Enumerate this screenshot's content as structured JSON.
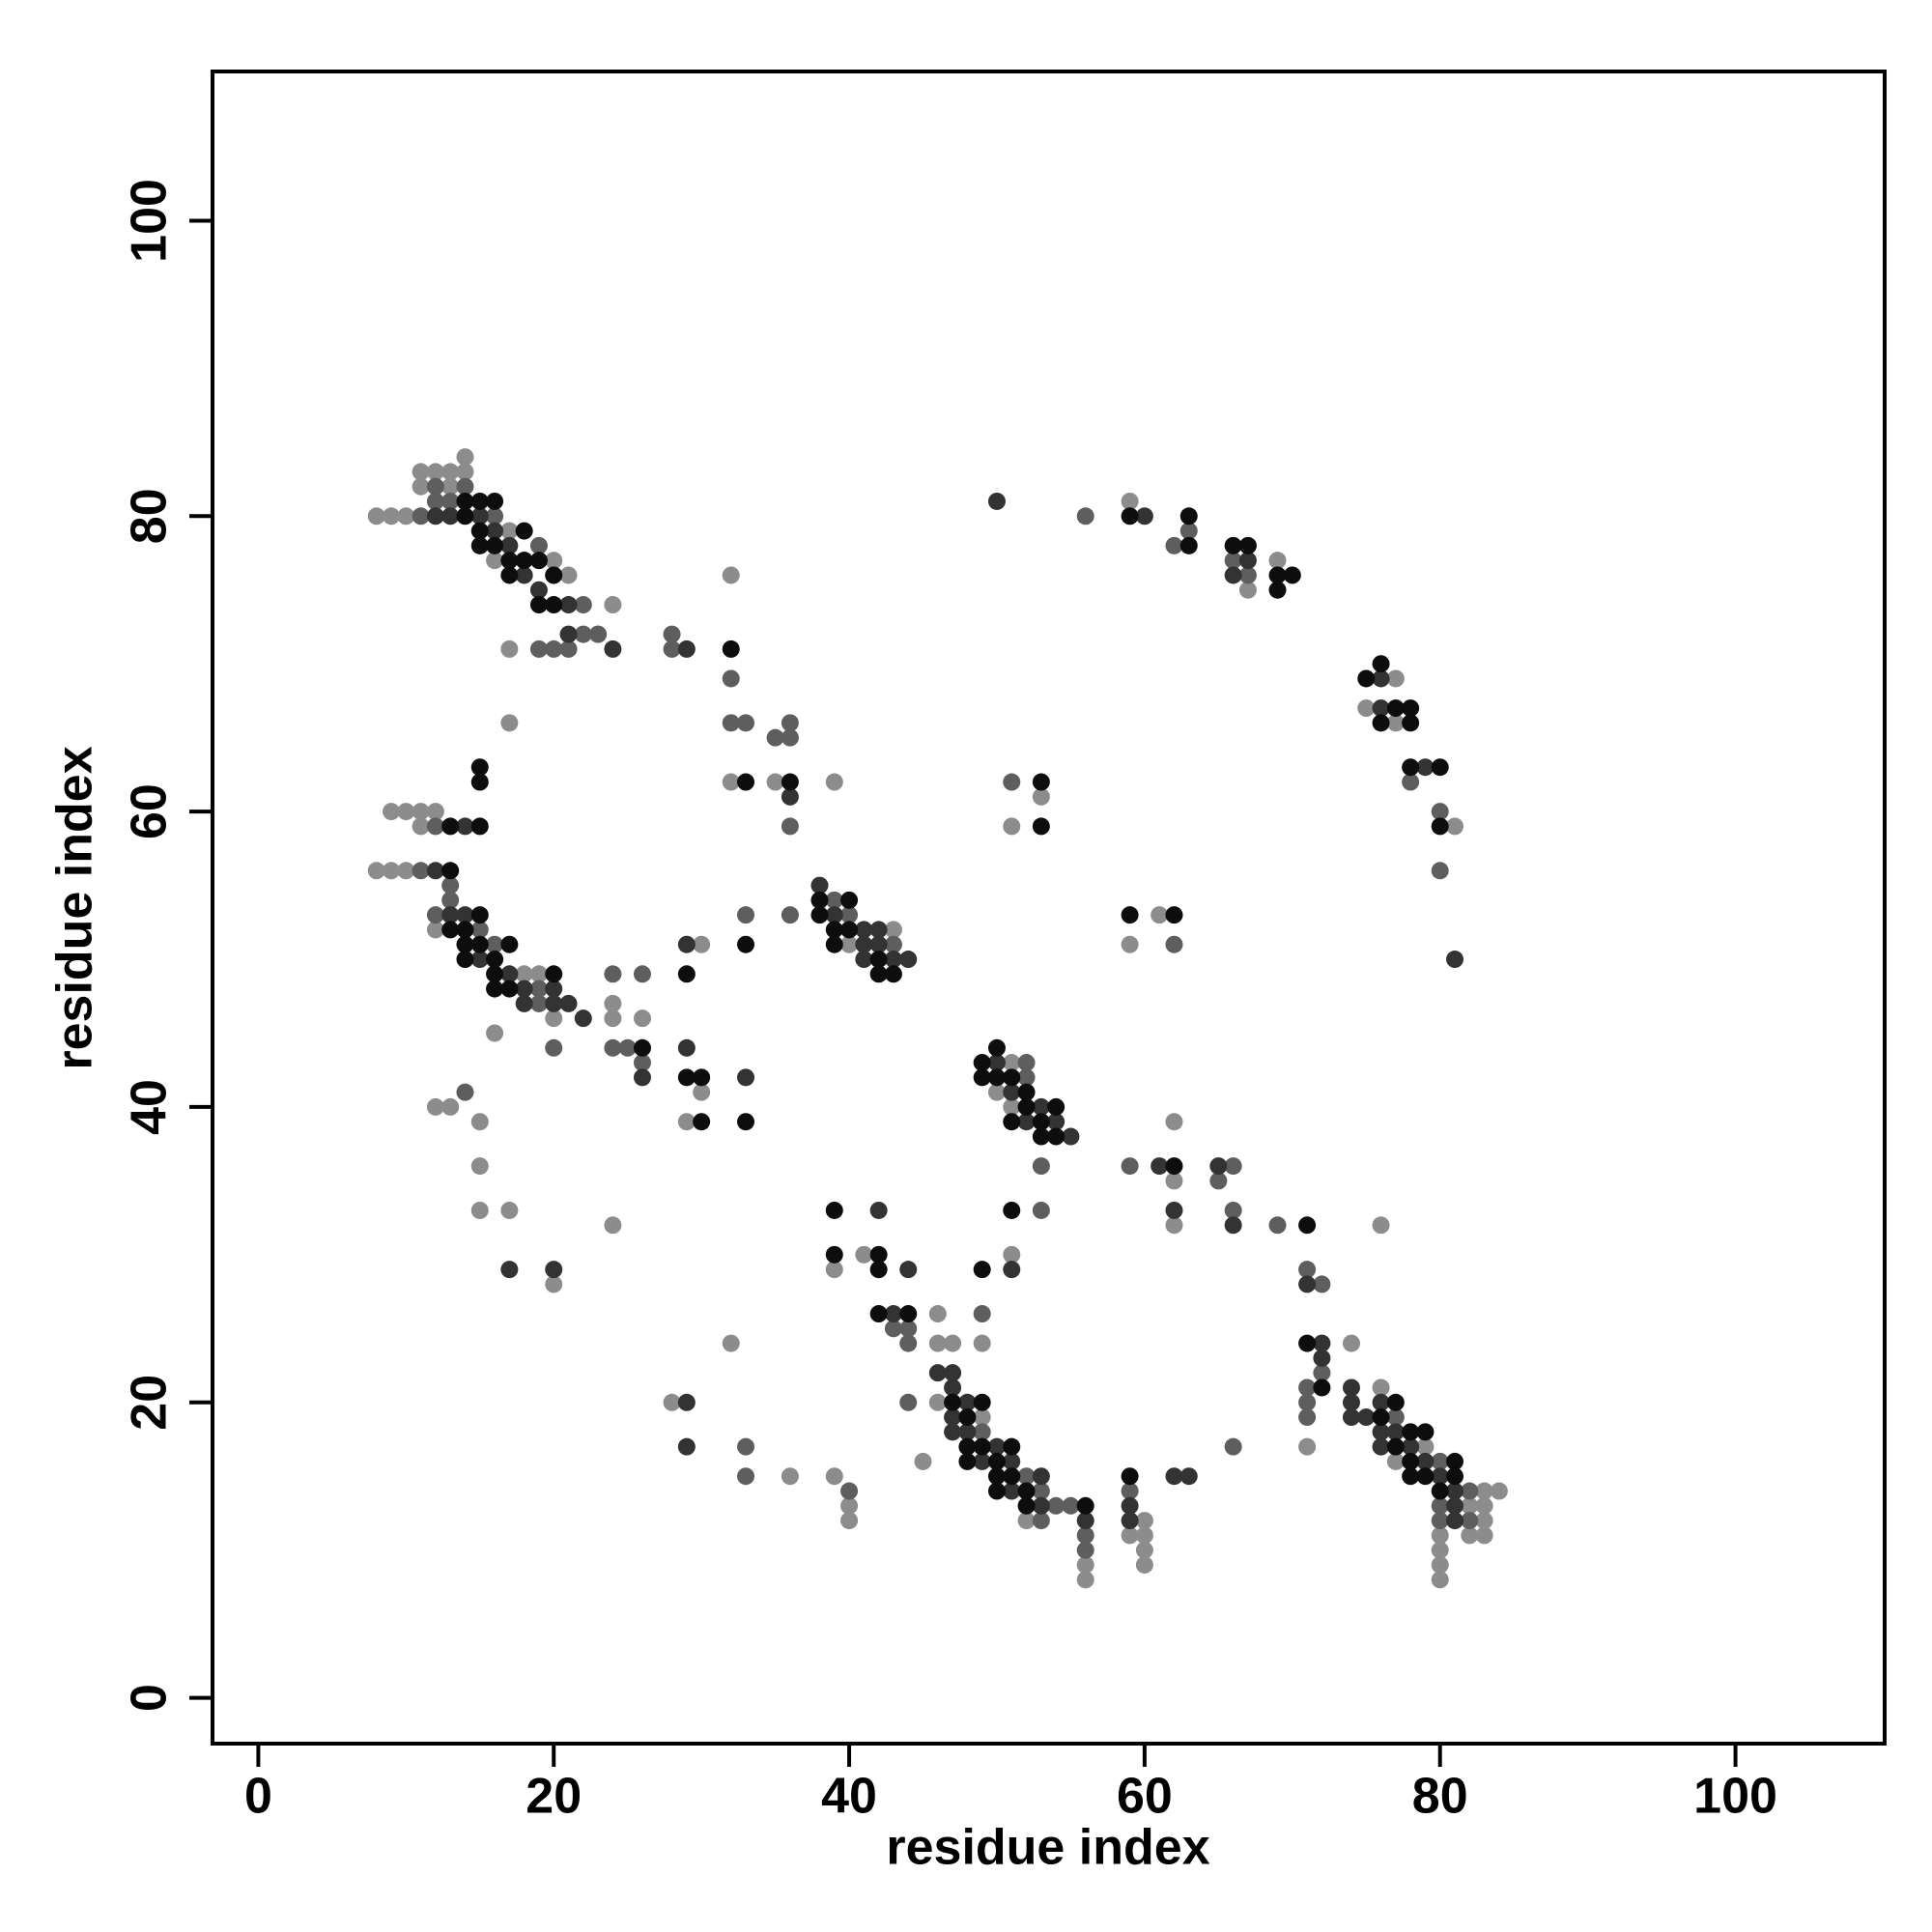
{
  "chart_data": {
    "type": "scatter",
    "x_label": "residue index",
    "y_label": "residue index",
    "xlim": [
      -3.1,
      110.1
    ],
    "ylim": [
      -3.1,
      110.1
    ],
    "xticks": [
      0,
      20,
      40,
      60,
      80,
      100
    ],
    "yticks": [
      0,
      20,
      40,
      60,
      80,
      100
    ],
    "grid": false,
    "series": [
      {
        "color": "#8c8c8c",
        "x": [
          8,
          9,
          10,
          11,
          12,
          13,
          14,
          14,
          11,
          13,
          16,
          17,
          20,
          21,
          24,
          23,
          17,
          17,
          32,
          32,
          35,
          39,
          9,
          10,
          11,
          12,
          11,
          8,
          9,
          10,
          12,
          18,
          19,
          20,
          24,
          24,
          26,
          16,
          30,
          29,
          30,
          12,
          13,
          15,
          15,
          15,
          17,
          20,
          24,
          40,
          43,
          51,
          50,
          51,
          62,
          62,
          62,
          76,
          41,
          39,
          51,
          46,
          46,
          47,
          49,
          32,
          46,
          49,
          52,
          56,
          56,
          45,
          39,
          40,
          40,
          36,
          28,
          60,
          60,
          59,
          60,
          60,
          74,
          76,
          79,
          77,
          83,
          84,
          82,
          83,
          83,
          80,
          82,
          83,
          80,
          80,
          80,
          71,
          59,
          67,
          69,
          77,
          75,
          77,
          81,
          53,
          51,
          61,
          59
        ],
        "values": [
          80,
          80,
          80,
          83,
          83,
          83,
          84,
          83,
          82,
          82,
          77,
          79,
          77,
          76,
          74,
          72,
          71,
          66,
          76,
          62,
          62,
          62,
          60,
          60,
          60,
          60,
          59,
          56,
          56,
          56,
          52,
          49,
          49,
          46,
          47,
          46,
          46,
          45,
          41,
          39,
          51,
          40,
          40,
          39,
          36,
          33,
          33,
          28,
          32,
          51,
          52,
          43,
          41,
          40,
          35,
          39,
          32,
          32,
          30,
          29,
          30,
          26,
          24,
          24,
          24,
          24,
          20,
          19,
          12,
          9,
          8,
          16,
          15,
          13,
          12,
          15,
          20,
          12,
          11,
          11,
          10,
          9,
          24,
          21,
          17,
          16,
          14,
          14,
          13,
          13,
          12,
          11,
          11,
          11,
          10,
          9,
          8,
          17,
          81,
          75,
          77,
          69,
          67,
          66,
          59,
          61,
          59,
          53,
          51
        ]
      },
      {
        "color": "#5e5e5e",
        "x": [
          11,
          12,
          13,
          12,
          14,
          16,
          19,
          18,
          20,
          22,
          22,
          19,
          20,
          21,
          23,
          28,
          28,
          32,
          32,
          33,
          35,
          36,
          36,
          36,
          12,
          11,
          13,
          13,
          12,
          15,
          16,
          19,
          19,
          24,
          26,
          20,
          24,
          25,
          26,
          33,
          36,
          14,
          39,
          40,
          43,
          52,
          52,
          53,
          53,
          59,
          65,
          66,
          66,
          69,
          71,
          72,
          43,
          44,
          44,
          49,
          44,
          49,
          52,
          53,
          54,
          55,
          53,
          56,
          56,
          40,
          33,
          33,
          59,
          66,
          72,
          71,
          71,
          71,
          77,
          80,
          82,
          80,
          80,
          82,
          56,
          62,
          63,
          66,
          67,
          78,
          80,
          80,
          51,
          62
        ],
        "values": [
          80,
          82,
          81,
          81,
          82,
          80,
          78,
          77,
          76,
          74,
          72,
          71,
          71,
          71,
          72,
          72,
          71,
          69,
          66,
          66,
          65,
          66,
          65,
          59,
          59,
          56,
          55,
          54,
          53,
          52,
          51,
          48,
          47,
          49,
          49,
          44,
          44,
          44,
          43,
          53,
          53,
          41,
          54,
          53,
          51,
          43,
          42,
          36,
          33,
          36,
          35,
          36,
          33,
          32,
          29,
          28,
          25,
          25,
          24,
          26,
          20,
          18,
          15,
          14,
          13,
          13,
          12,
          11,
          10,
          14,
          15,
          17,
          14,
          17,
          22,
          21,
          20,
          19,
          19,
          16,
          14,
          13,
          12,
          12,
          80,
          78,
          79,
          77,
          76,
          62,
          60,
          56,
          62,
          51
        ]
      },
      {
        "color": "#333333",
        "x": [
          12,
          13,
          15,
          16,
          17,
          18,
          19,
          21,
          21,
          24,
          29,
          36,
          14,
          12,
          13,
          14,
          15,
          17,
          18,
          18,
          20,
          20,
          21,
          22,
          26,
          29,
          33,
          29,
          17,
          20,
          38,
          39,
          41,
          41,
          42,
          42,
          41,
          43,
          44,
          50,
          51,
          53,
          52,
          54,
          55,
          61,
          62,
          65,
          66,
          71,
          42,
          43,
          44,
          51,
          46,
          47,
          47,
          48,
          47,
          47,
          48,
          50,
          49,
          51,
          53,
          51,
          53,
          56,
          29,
          29,
          59,
          59,
          62,
          63,
          72,
          72,
          74,
          74,
          74,
          75,
          76,
          76,
          77,
          76,
          78,
          79,
          80,
          81,
          81,
          81,
          50,
          60,
          67,
          66,
          76,
          76,
          79,
          81
        ],
        "values": [
          80,
          80,
          80,
          79,
          78,
          76,
          75,
          74,
          72,
          71,
          71,
          61,
          59,
          56,
          53,
          53,
          50,
          49,
          48,
          47,
          48,
          47,
          47,
          46,
          42,
          44,
          42,
          51,
          29,
          29,
          55,
          53,
          52,
          51,
          52,
          51,
          50,
          50,
          50,
          43,
          41,
          40,
          39,
          39,
          38,
          36,
          33,
          36,
          32,
          28,
          33,
          26,
          29,
          29,
          22,
          22,
          21,
          20,
          19,
          18,
          18,
          17,
          16,
          16,
          15,
          14,
          13,
          12,
          17,
          20,
          13,
          12,
          15,
          15,
          24,
          23,
          21,
          20,
          19,
          19,
          20,
          18,
          18,
          17,
          17,
          16,
          15,
          14,
          13,
          12,
          81,
          80,
          77,
          76,
          69,
          67,
          63,
          50
        ]
      },
      {
        "color": "#0d0d0d",
        "x": [
          14,
          15,
          16,
          14,
          15,
          15,
          16,
          17,
          18,
          17,
          18,
          19,
          19,
          20,
          20,
          32,
          33,
          36,
          15,
          15,
          13,
          15,
          13,
          13,
          14,
          15,
          14,
          14,
          15,
          16,
          17,
          16,
          16,
          17,
          20,
          26,
          29,
          30,
          30,
          33,
          29,
          33,
          38,
          40,
          38,
          39,
          40,
          39,
          42,
          42,
          43,
          50,
          49,
          49,
          50,
          51,
          52,
          52,
          54,
          51,
          53,
          53,
          54,
          51,
          62,
          71,
          39,
          39,
          42,
          42,
          49,
          42,
          44,
          47,
          49,
          48,
          48,
          49,
          51,
          48,
          50,
          50,
          51,
          50,
          52,
          52,
          56,
          59,
          71,
          72,
          77,
          76,
          77,
          78,
          79,
          78,
          78,
          79,
          81,
          81,
          80,
          59,
          63,
          63,
          66,
          67,
          69,
          70,
          69,
          75,
          76,
          77,
          78,
          76,
          78,
          78,
          80,
          80,
          53,
          53,
          59,
          62
        ],
        "values": [
          81,
          81,
          81,
          80,
          79,
          78,
          78,
          77,
          79,
          76,
          77,
          77,
          74,
          74,
          76,
          71,
          62,
          62,
          63,
          62,
          59,
          59,
          56,
          52,
          52,
          53,
          51,
          50,
          51,
          50,
          51,
          49,
          48,
          48,
          49,
          44,
          42,
          42,
          39,
          39,
          49,
          51,
          54,
          54,
          53,
          52,
          52,
          51,
          50,
          49,
          49,
          44,
          43,
          42,
          42,
          42,
          41,
          40,
          40,
          39,
          39,
          38,
          38,
          33,
          36,
          32,
          33,
          30,
          30,
          29,
          29,
          26,
          26,
          20,
          20,
          19,
          17,
          17,
          17,
          16,
          16,
          15,
          15,
          14,
          14,
          13,
          13,
          15,
          24,
          21,
          20,
          19,
          17,
          18,
          18,
          16,
          15,
          15,
          16,
          15,
          14,
          80,
          80,
          78,
          78,
          78,
          76,
          76,
          75,
          69,
          70,
          67,
          67,
          66,
          66,
          63,
          63,
          59,
          62,
          59,
          53,
          53
        ]
      }
    ]
  }
}
